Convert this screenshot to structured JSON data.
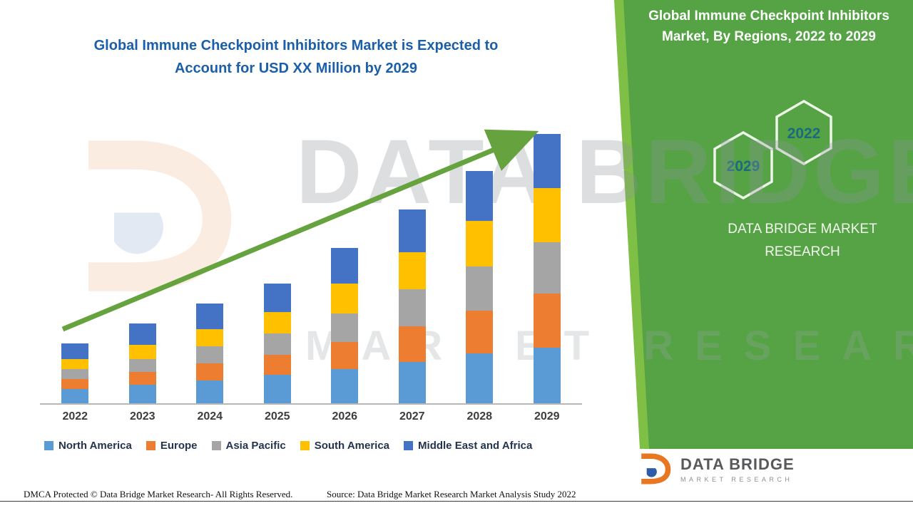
{
  "header": {
    "title_line1": "Global Immune Checkpoint Inhibitors Market is Expected to",
    "title_line2": "Account for USD XX Million by 2029",
    "title_color": "#1a5fa8"
  },
  "side_panel": {
    "title": "Global Immune Checkpoint Inhibitors Market, By Regions, 2022 to 2029",
    "hex_year_top": "2022",
    "hex_year_bottom": "2029",
    "brand_text": "DATA BRIDGE MARKET RESEARCH",
    "panel_color": "#55a345",
    "edge_color": "#7fbf45",
    "hex_text_color": "#1b6a7e"
  },
  "watermark": {
    "line1": "DATA BRIDGE",
    "line2": "MARKET RESEARCH"
  },
  "chart_data": {
    "type": "bar",
    "stacked": true,
    "title": "Global Immune Checkpoint Inhibitors Market is Expected to Account for USD XX Million by 2029",
    "categories": [
      "2022",
      "2023",
      "2024",
      "2025",
      "2026",
      "2027",
      "2028",
      "2029"
    ],
    "series": [
      {
        "name": "North America",
        "color": "#5b9bd5",
        "values": [
          5,
          6.5,
          8,
          10,
          12,
          14.5,
          17.5,
          19.5
        ]
      },
      {
        "name": "Europe",
        "color": "#ed7d31",
        "values": [
          3.5,
          4.5,
          6,
          7,
          9.5,
          12.5,
          15,
          19
        ]
      },
      {
        "name": "Asia Pacific",
        "color": "#a5a5a5",
        "values": [
          3.5,
          4.5,
          6,
          7.5,
          10,
          13,
          15.5,
          18
        ]
      },
      {
        "name": "South America",
        "color": "#ffc000",
        "values": [
          3.5,
          5,
          6,
          7.5,
          10.5,
          13,
          16,
          19
        ]
      },
      {
        "name": "Middle East and Africa",
        "color": "#4472c4",
        "values": [
          5.5,
          7.5,
          9,
          10,
          12.5,
          15,
          17.5,
          19
        ]
      }
    ],
    "xlabel": "",
    "ylabel": "",
    "ylim": [
      0,
      100
    ],
    "grid": false,
    "legend_position": "bottom",
    "trend_arrow": true,
    "arrow_color": "#66a33e"
  },
  "footer": {
    "dmca": "DMCA Protected © Data Bridge Market Research- All Rights Reserved.",
    "source": "Source: Data Bridge Market Research Market Analysis Study 2022"
  },
  "logo": {
    "name": "DATA BRIDGE",
    "tagline": "MARKET RESEARCH"
  }
}
